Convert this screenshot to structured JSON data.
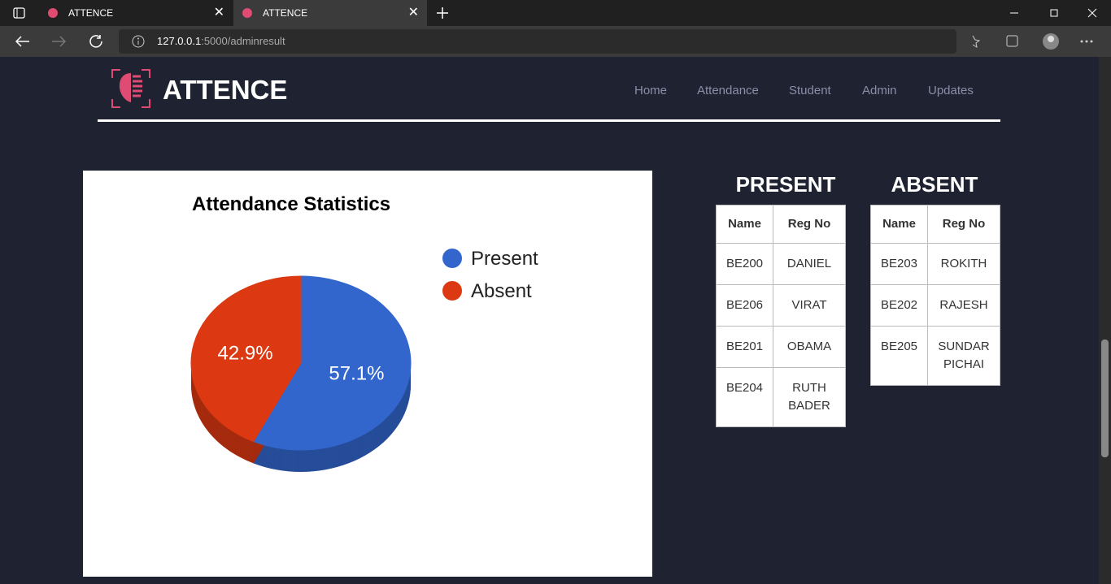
{
  "browser": {
    "tabs": [
      "ATTENCE",
      "ATTENCE"
    ],
    "url_host": "127.0.0.1",
    "url_path": ":5000/adminresult"
  },
  "nav": {
    "brand": "ATTENCE",
    "links": [
      "Home",
      "Attendance",
      "Student",
      "Admin",
      "Updates"
    ]
  },
  "chart_data": {
    "type": "pie",
    "title": "Attendance Statistics",
    "categories": [
      "Present",
      "Absent"
    ],
    "values": [
      57.1,
      42.9
    ],
    "value_labels": [
      "57.1%",
      "42.9%"
    ],
    "colors": [
      "#3366cc",
      "#dc3912"
    ]
  },
  "present": {
    "title": "PRESENT",
    "headers": [
      "Name",
      "Reg No"
    ],
    "rows": [
      [
        "BE200",
        "DANIEL"
      ],
      [
        "BE206",
        "VIRAT"
      ],
      [
        "BE201",
        "OBAMA"
      ],
      [
        "BE204",
        "RUTH BADER"
      ]
    ]
  },
  "absent": {
    "title": "ABSENT",
    "headers": [
      "Name",
      "Reg No"
    ],
    "rows": [
      [
        "BE203",
        "ROKITH"
      ],
      [
        "BE202",
        "RAJESH"
      ],
      [
        "BE205",
        "SUNDAR PICHAI"
      ]
    ]
  }
}
